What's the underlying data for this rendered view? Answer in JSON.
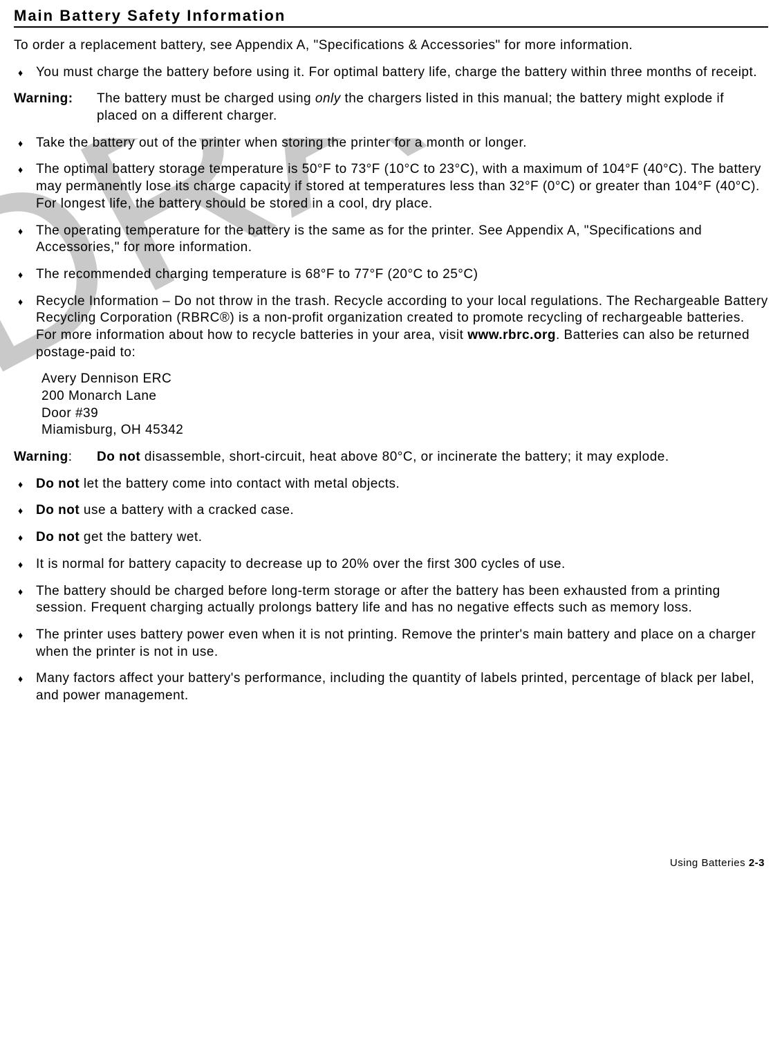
{
  "watermark": "DRAFT",
  "heading": "Main Battery Safety Information",
  "intro": "To order a replacement battery, see Appendix A, \"Specifications & Accessories\" for more information.",
  "bullets_top": [
    "You must charge the battery before using it.  For optimal battery life, charge the battery within three months of receipt."
  ],
  "warning1": {
    "label": "Warning:",
    "prefix": "The battery must be charged using ",
    "italic": "only",
    "suffix": " the chargers listed in this manual; the battery might explode if placed on a different charger."
  },
  "bullets_mid": [
    "Take the battery out of the printer when storing the printer for a month or longer.",
    "The optimal battery storage temperature is 50°F to 73°F (10°C to 23°C), with a maximum of 104°F (40°C).  The battery may permanently lose its charge capacity if stored at temperatures less than 32°F (0°C) or greater than 104°F (40°C).  For longest life, the battery should be stored in a cool, dry place.",
    "The operating temperature for the battery is the same as for the printer.  See Appendix A, \"Specifications and Accessories,\" for more information.",
    "The recommended charging temperature is 68°F to 77°F (20°C to 25°C)"
  ],
  "recycle_bullet": {
    "prefix": "Recycle Information – Do not throw in the trash.  Recycle according to your local regulations.  The Rechargeable Battery Recycling Corporation (RBRC®) is a non-profit organization created to promote recycling of rechargeable batteries.  For more information about how to recycle batteries in your area, visit ",
    "bold": "www.rbrc.org",
    "suffix": ".  Batteries can also be returned postage-paid to:"
  },
  "address": [
    "Avery Dennison ERC",
    "200 Monarch Lane",
    "Door #39",
    "Miamisburg, OH 45342"
  ],
  "warning2": {
    "label": "Warning",
    "colon": ":",
    "bold": "Do not",
    "text": " disassemble, short-circuit, heat above 80°C, or incinerate the battery; it may explode."
  },
  "bullets_donot": [
    {
      "bold": "Do not",
      "text": " let the battery come into contact with metal objects."
    },
    {
      "bold": "Do not",
      "text": " use a battery with a cracked case."
    },
    {
      "bold": "Do not",
      "text": " get the battery wet."
    }
  ],
  "bullets_bottom": [
    "It is normal for battery capacity to decrease up to 20% over the first 300 cycles of use.",
    "The battery should be charged before long-term storage or after the battery has been exhausted from a printing session.  Frequent charging actually prolongs battery life and has no negative effects such as memory loss.",
    "The printer uses battery power even when it is not printing.  Remove the printer's main battery and place on a charger when the printer is not in use.",
    "Many factors affect your battery's performance, including the quantity of labels printed, percentage of black per label, and power management."
  ],
  "footer": {
    "text": "Using Batteries  ",
    "page": "2-3"
  }
}
